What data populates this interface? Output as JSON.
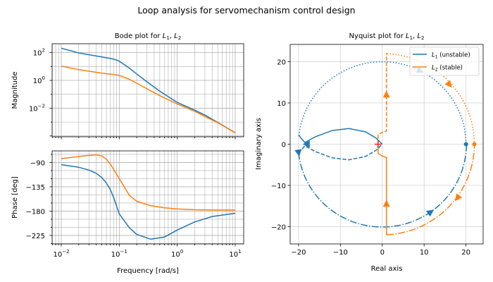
{
  "figure_title": "Loop analysis for servomechanism control design",
  "colors": {
    "L1": "#1f77b4",
    "L2": "#ff7f0e",
    "critical_point": "#ff0000",
    "grid": "#b0b0b0"
  },
  "chart_data": [
    {
      "type": "line",
      "name": "bode",
      "title": {
        "prefix": "Bode plot for ",
        "sym1": "L",
        "sub1": "1",
        "sep": ", ",
        "sym2": "L",
        "sub2": "2"
      },
      "xlabel": "Frequency [rad/s]",
      "xscale": "log",
      "xlim": [
        0.00695,
        14.0
      ],
      "xticks": [
        0.01,
        0.1,
        1,
        10
      ],
      "xtick_exponents": [
        "−2",
        "−1",
        "0",
        "1"
      ],
      "grid": true,
      "magnitude": {
        "ylabel": "Magnitude",
        "yscale": "log",
        "ylim": [
          8.71e-05,
          437
        ],
        "yticks": [
          0.01,
          1,
          100
        ],
        "ytick_exponents": [
          "−2",
          "0",
          "2"
        ],
        "frequency": [
          0.01,
          0.02,
          0.05,
          0.08,
          0.1,
          0.15,
          0.2,
          0.3,
          0.5,
          1,
          2,
          3,
          5,
          10
        ],
        "series": [
          {
            "key": "L1",
            "values": [
              209,
              95,
              49,
              34,
              24.5,
              7.6,
              2.9,
              0.79,
              0.166,
              0.026,
              0.0072,
              0.0032,
              0.00095,
              0.00017
            ]
          },
          {
            "key": "L2",
            "values": [
              10.5,
              6.0,
              3.3,
              2.6,
              2.3,
              1.2,
              0.63,
              0.25,
              0.079,
              0.02,
              0.006,
              0.0025,
              0.00089,
              0.00017
            ]
          }
        ]
      },
      "phase": {
        "ylabel": "Phase [deg]",
        "ylim": [
          -240.7,
          -68.6
        ],
        "yticks": [
          -90,
          -135,
          -180,
          -225
        ],
        "ytick_labels": [
          "−90",
          "−135",
          "−180",
          "−225"
        ],
        "frequency": [
          0.01,
          0.02,
          0.03,
          0.04,
          0.05,
          0.06,
          0.07,
          0.08,
          0.1,
          0.15,
          0.2,
          0.35,
          0.6,
          1,
          2,
          4,
          10
        ],
        "series": [
          {
            "key": "L1",
            "values": [
              -94,
              -99,
              -104,
              -110,
              -118,
              -128,
              -140,
              -155,
              -185,
              -211,
              -223,
              -232,
              -228,
              -215,
              -200,
              -190,
              -184
            ]
          },
          {
            "key": "L2",
            "values": [
              -83,
              -79,
              -77,
              -76,
              -78,
              -84,
              -93,
              -103,
              -120,
              -151,
              -162,
              -170,
              -174,
              -176,
              -177.5,
              -178,
              -178
            ]
          }
        ]
      }
    },
    {
      "type": "line",
      "name": "nyquist",
      "title": {
        "prefix": "Nyquist plot for ",
        "sym1": "L",
        "sub1": "1",
        "sep": ", ",
        "sym2": "L",
        "sub2": "2"
      },
      "xlabel": "Real axis",
      "ylabel": "Imaginary axis",
      "xlim": [
        -22,
        24.1
      ],
      "ylim": [
        -24.2,
        24.2
      ],
      "xticks": [
        -20,
        -10,
        0,
        10,
        20
      ],
      "xtick_labels": [
        "−20",
        "−10",
        "0",
        "10",
        "20"
      ],
      "yticks": [
        -20,
        -10,
        0,
        10,
        20
      ],
      "ytick_labels": [
        "−20",
        "−10",
        "0",
        "10",
        "20"
      ],
      "grid": true,
      "legend": {
        "position": "top-right",
        "entries": [
          {
            "key": "L1",
            "sym": "L",
            "sub": "1",
            "text": " (unstable)"
          },
          {
            "key": "L2",
            "sym": "L",
            "sub": "2",
            "text": " (stable)"
          }
        ]
      },
      "critical_point": [
        -1,
        0
      ],
      "series": [
        {
          "key": "L1",
          "segments": [
            {
              "style": "solid",
              "points": [
                [
                  -20,
                  2.2
                ],
                [
                  -18.5,
                  0.4
                ],
                [
                  -16,
                  1.8
                ],
                [
                  -12,
                  3.3
                ],
                [
                  -8,
                  3.8
                ],
                [
                  -4,
                  3.0
                ],
                [
                  -1.5,
                  1.5
                ],
                [
                  0,
                  0
                ]
              ]
            },
            {
              "style": "dashed",
              "points": [
                [
                  -20,
                  -2.2
                ],
                [
                  -18.5,
                  -0.4
                ],
                [
                  -16,
                  -1.8
                ],
                [
                  -12,
                  -3.3
                ],
                [
                  -8,
                  -3.8
                ],
                [
                  -4,
                  -3.0
                ],
                [
                  -1.5,
                  -1.5
                ],
                [
                  0,
                  0
                ]
              ]
            },
            {
              "style": "dotted",
              "arc": {
                "center": [
                  0,
                  0
                ],
                "radius": 20,
                "from_deg": 174,
                "to_deg": 0
              }
            },
            {
              "style": "dashdot",
              "arc": {
                "center": [
                  0,
                  0
                ],
                "radius": 20.1,
                "from_deg": -174,
                "to_deg": 0
              }
            }
          ],
          "start_marker": [
            20,
            0
          ],
          "arrows": [
            {
              "at": [
                -18,
                0
              ],
              "dir_deg": 180
            },
            {
              "at": [
                -20,
                -2
              ],
              "dir_deg": -80
            },
            {
              "at": [
                9,
                17.8
              ],
              "dir_deg": -25
            },
            {
              "at": [
                11.5,
                -16.5
              ],
              "dir_deg": 35
            }
          ]
        },
        {
          "key": "L2",
          "segments": [
            {
              "style": "solid",
              "points": [
                [
                  -1,
                  0
                ],
                [
                  -1,
                  -0.5
                ],
                [
                  -1,
                  -2.2
                ],
                [
                  0,
                  -2.9
                ],
                [
                  1,
                  -3.2
                ],
                [
                  1,
                  -22.1
                ]
              ]
            },
            {
              "style": "dashed",
              "points": [
                [
                  -1,
                  0
                ],
                [
                  -1,
                  0.5
                ],
                [
                  -1,
                  2.2
                ],
                [
                  0,
                  2.9
                ],
                [
                  1,
                  3.2
                ],
                [
                  1,
                  22.1
                ]
              ]
            },
            {
              "style": "dotted",
              "arc": {
                "center": [
                  0,
                  0
                ],
                "radius": 22,
                "from_deg": 87,
                "to_deg": 0
              }
            },
            {
              "style": "dashdot",
              "arc": {
                "center": [
                  0,
                  0
                ],
                "radius": 22,
                "from_deg": -87,
                "to_deg": 0
              }
            }
          ],
          "start_marker": [
            22,
            0
          ],
          "arrows": [
            {
              "at": [
                1,
                12
              ],
              "dir_deg": 90
            },
            {
              "at": [
                1,
                -14.5
              ],
              "dir_deg": 90
            },
            {
              "at": [
                16,
                14.5
              ],
              "dir_deg": -50
            },
            {
              "at": [
                18,
                -13
              ],
              "dir_deg": -125
            }
          ]
        }
      ]
    }
  ]
}
